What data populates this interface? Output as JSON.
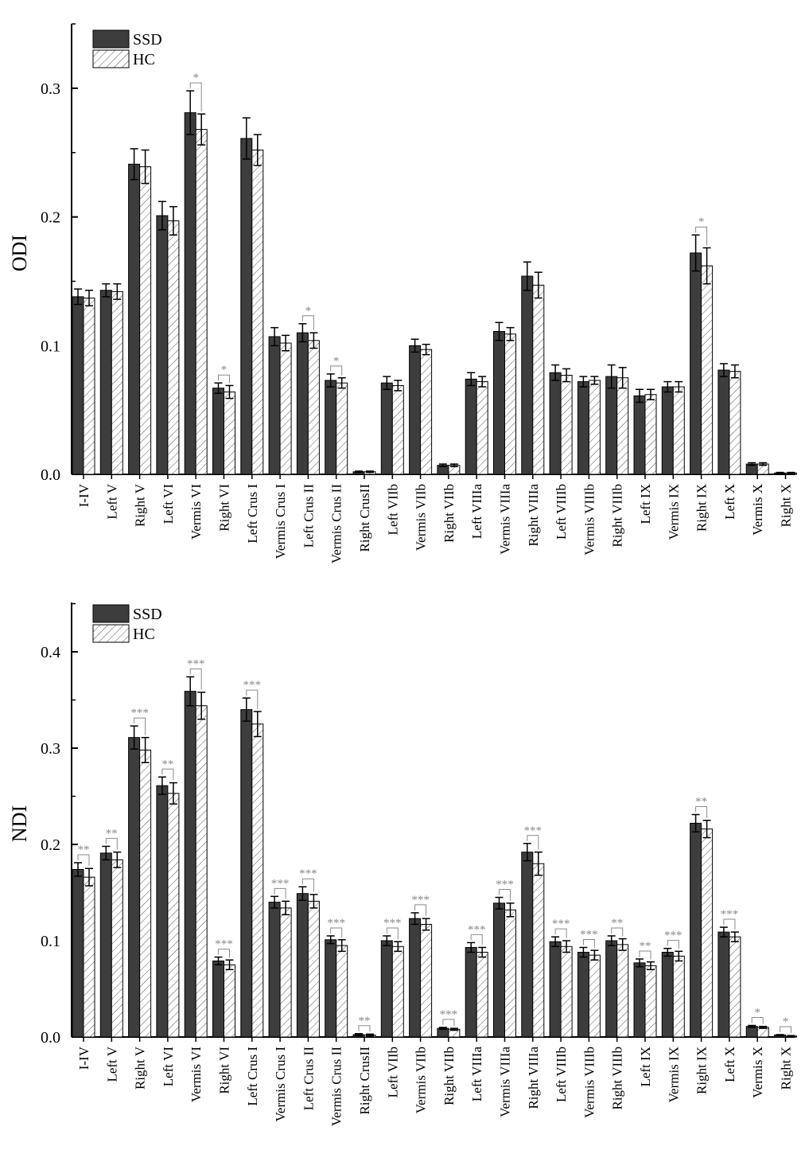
{
  "chart_data": [
    {
      "type": "bar",
      "ylabel": "ODI",
      "xlabel": "",
      "title": "",
      "ylim": [
        0,
        0.35
      ],
      "yticks": [
        "0.0",
        "0.1",
        "0.2",
        "0.3"
      ],
      "legend": {
        "placement": "top-left",
        "entries": [
          "SSD",
          "HC"
        ]
      },
      "categories": [
        "I-IV",
        "Left V",
        "Right V",
        "Left VI",
        "Vermis VI",
        "Right VI",
        "Left Crus I",
        "Vermis Crus I",
        "Left Crus II",
        "Vermis Crus II",
        "Right CrusII",
        "Left VIIb",
        "Vermis VIIb",
        "Right VIIb",
        "Left VIIIa",
        "Vermis VIIIa",
        "Right VIIIa",
        "Left VIIIb",
        "Vermis VIIIb",
        "Right VIIIb",
        "Left IX",
        "Vermis IX",
        "Right IX",
        "Left X",
        "Vermis X",
        "Right X"
      ],
      "series": [
        {
          "name": "SSD",
          "values": [
            0.138,
            0.143,
            0.241,
            0.201,
            0.281,
            0.067,
            0.261,
            0.107,
            0.11,
            0.073,
            0.002,
            0.071,
            0.1,
            0.007,
            0.074,
            0.111,
            0.154,
            0.079,
            0.072,
            0.076,
            0.061,
            0.068,
            0.172,
            0.081,
            0.008,
            0.001
          ],
          "errors": [
            0.006,
            0.005,
            0.012,
            0.011,
            0.017,
            0.004,
            0.016,
            0.007,
            0.007,
            0.005,
            0.0005,
            0.005,
            0.005,
            0.001,
            0.005,
            0.007,
            0.011,
            0.006,
            0.004,
            0.009,
            0.005,
            0.004,
            0.014,
            0.005,
            0.001,
            0.0005
          ]
        },
        {
          "name": "HC",
          "values": [
            0.137,
            0.142,
            0.239,
            0.197,
            0.268,
            0.064,
            0.252,
            0.102,
            0.104,
            0.071,
            0.002,
            0.069,
            0.097,
            0.007,
            0.072,
            0.109,
            0.147,
            0.077,
            0.073,
            0.075,
            0.062,
            0.068,
            0.162,
            0.08,
            0.008,
            0.001
          ],
          "errors": [
            0.006,
            0.006,
            0.013,
            0.011,
            0.012,
            0.005,
            0.012,
            0.006,
            0.006,
            0.004,
            0.0005,
            0.004,
            0.004,
            0.001,
            0.004,
            0.005,
            0.01,
            0.005,
            0.003,
            0.008,
            0.004,
            0.004,
            0.014,
            0.005,
            0.001,
            0.0005
          ]
        }
      ],
      "significance": [
        "",
        "",
        "",
        "",
        "*",
        "*",
        "",
        "",
        "*",
        "*",
        "",
        "",
        "",
        "",
        "",
        "",
        "",
        "",
        "",
        "",
        "",
        "",
        "*",
        "",
        "",
        ""
      ]
    },
    {
      "type": "bar",
      "ylabel": "NDI",
      "xlabel": "",
      "title": "",
      "ylim": [
        0,
        0.45
      ],
      "yticks": [
        "0.0",
        "0.1",
        "0.2",
        "0.3",
        "0.4"
      ],
      "legend": {
        "placement": "top-left",
        "entries": [
          "SSD",
          "HC"
        ]
      },
      "categories": [
        "I-IV",
        "Left V",
        "Right V",
        "Left VI",
        "Vermis VI",
        "Right VI",
        "Left Crus I",
        "Vermis Crus I",
        "Left Crus II",
        "Vermis Crus II",
        "Right CrusII",
        "Left VIIb",
        "Vermis VIIb",
        "Right VIIb",
        "Left VIIIa",
        "Vermis VIIIa",
        "Right VIIIa",
        "Left VIIIb",
        "Vermis VIIIb",
        "Right VIIIb",
        "Left IX",
        "Vermis IX",
        "Right IX",
        "Left X",
        "Vermis X",
        "Right X"
      ],
      "series": [
        {
          "name": "SSD",
          "values": [
            0.174,
            0.191,
            0.311,
            0.261,
            0.359,
            0.079,
            0.34,
            0.14,
            0.149,
            0.101,
            0.0025,
            0.1,
            0.123,
            0.009,
            0.093,
            0.139,
            0.192,
            0.099,
            0.088,
            0.1,
            0.077,
            0.088,
            0.222,
            0.109,
            0.011,
            0.002
          ],
          "errors": [
            0.007,
            0.007,
            0.012,
            0.009,
            0.015,
            0.004,
            0.012,
            0.006,
            0.007,
            0.004,
            0.001,
            0.005,
            0.006,
            0.001,
            0.005,
            0.006,
            0.009,
            0.005,
            0.005,
            0.005,
            0.004,
            0.004,
            0.009,
            0.005,
            0.001,
            0.0005
          ]
        },
        {
          "name": "HC",
          "values": [
            0.166,
            0.184,
            0.298,
            0.253,
            0.344,
            0.075,
            0.325,
            0.134,
            0.141,
            0.095,
            0.002,
            0.094,
            0.117,
            0.008,
            0.088,
            0.132,
            0.18,
            0.094,
            0.085,
            0.096,
            0.074,
            0.084,
            0.216,
            0.104,
            0.01,
            0.001
          ],
          "errors": [
            0.009,
            0.008,
            0.013,
            0.011,
            0.014,
            0.005,
            0.013,
            0.007,
            0.007,
            0.006,
            0.001,
            0.005,
            0.006,
            0.001,
            0.005,
            0.007,
            0.012,
            0.006,
            0.005,
            0.006,
            0.004,
            0.005,
            0.009,
            0.005,
            0.001,
            0.0005
          ]
        }
      ],
      "significance": [
        "**",
        "**",
        "***",
        "**",
        "***",
        "***",
        "***",
        "***",
        "***",
        "***",
        "**",
        "***",
        "***",
        "***",
        "***",
        "***",
        "***",
        "***",
        "***",
        "**",
        "**",
        "***",
        "**",
        "***",
        "*",
        "*"
      ]
    }
  ],
  "colors": {
    "ssd": "#3d3d3d",
    "hc_hatch": "#555555",
    "star": "#8a8a8a",
    "axis": "#000000"
  }
}
